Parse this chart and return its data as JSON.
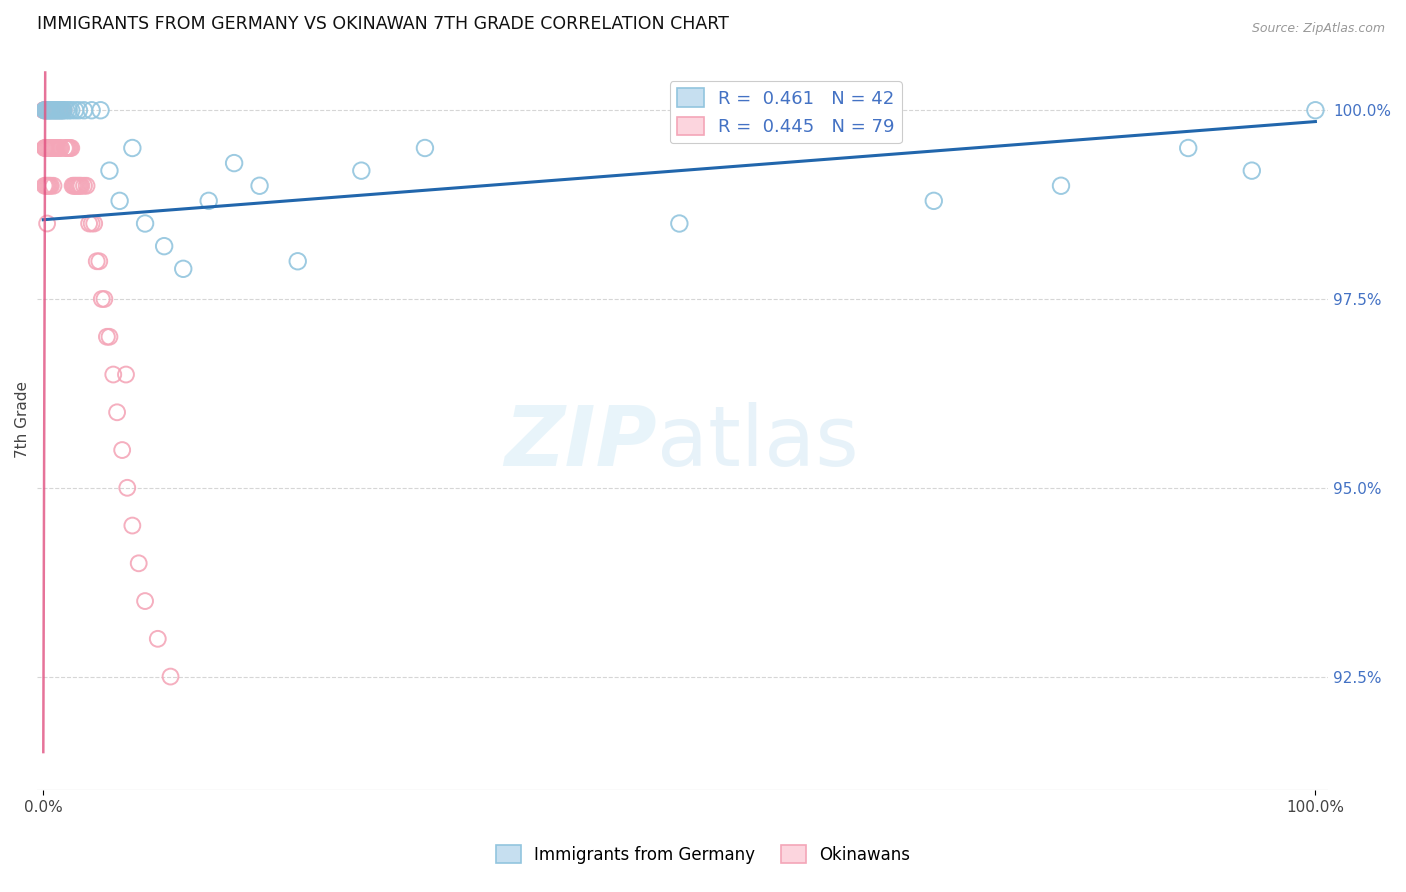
{
  "title": "IMMIGRANTS FROM GERMANY VS OKINAWAN 7TH GRADE CORRELATION CHART",
  "source": "Source: ZipAtlas.com",
  "ylabel": "7th Grade",
  "legend_blue_label": "Immigrants from Germany",
  "legend_pink_label": "Okinawans",
  "legend_R_blue": "R =  0.461",
  "legend_N_blue": "N = 42",
  "legend_R_pink": "R =  0.445",
  "legend_N_pink": "N = 79",
  "blue_color": "#92c5de",
  "pink_color": "#f4a6b8",
  "trendline_color": "#2166ac",
  "background_color": "#ffffff",
  "grid_color": "#cccccc",
  "ytick_color": "#4472c4",
  "right_yticks": [
    92.5,
    95.0,
    97.5,
    100.0
  ],
  "xlim": [
    0.0,
    1.0
  ],
  "ylim": [
    91.0,
    100.8
  ],
  "blue_x": [
    0.001,
    0.002,
    0.003,
    0.004,
    0.005,
    0.006,
    0.007,
    0.008,
    0.009,
    0.01,
    0.011,
    0.012,
    0.013,
    0.014,
    0.015,
    0.016,
    0.018,
    0.02,
    0.022,
    0.025,
    0.028,
    0.032,
    0.038,
    0.045,
    0.052,
    0.06,
    0.07,
    0.08,
    0.095,
    0.11,
    0.13,
    0.15,
    0.17,
    0.2,
    0.25,
    0.3,
    0.5,
    0.7,
    0.8,
    0.9,
    0.95,
    1.0
  ],
  "blue_y": [
    100.0,
    100.0,
    100.0,
    100.0,
    100.0,
    100.0,
    100.0,
    100.0,
    100.0,
    100.0,
    100.0,
    100.0,
    100.0,
    100.0,
    100.0,
    100.0,
    100.0,
    100.0,
    100.0,
    100.0,
    100.0,
    100.0,
    100.0,
    100.0,
    99.2,
    98.8,
    99.5,
    98.5,
    98.2,
    97.9,
    98.8,
    99.3,
    99.0,
    98.0,
    99.2,
    99.5,
    98.5,
    98.8,
    99.0,
    99.5,
    99.2,
    100.0
  ],
  "pink_x": [
    0.0003,
    0.0005,
    0.0007,
    0.001,
    0.001,
    0.001,
    0.0015,
    0.0015,
    0.002,
    0.002,
    0.002,
    0.0025,
    0.003,
    0.003,
    0.003,
    0.003,
    0.004,
    0.004,
    0.004,
    0.005,
    0.005,
    0.005,
    0.006,
    0.006,
    0.006,
    0.007,
    0.007,
    0.008,
    0.008,
    0.008,
    0.009,
    0.009,
    0.01,
    0.01,
    0.011,
    0.011,
    0.012,
    0.012,
    0.013,
    0.013,
    0.014,
    0.014,
    0.015,
    0.016,
    0.017,
    0.018,
    0.019,
    0.02,
    0.021,
    0.022,
    0.023,
    0.024,
    0.025,
    0.026,
    0.027,
    0.028,
    0.029,
    0.03,
    0.032,
    0.034,
    0.036,
    0.038,
    0.04,
    0.042,
    0.044,
    0.046,
    0.048,
    0.05,
    0.052,
    0.055,
    0.058,
    0.062,
    0.066,
    0.07,
    0.075,
    0.08,
    0.09,
    0.1,
    0.065
  ],
  "pink_y": [
    100.0,
    100.0,
    100.0,
    100.0,
    99.5,
    99.0,
    100.0,
    99.5,
    100.0,
    99.5,
    99.0,
    100.0,
    100.0,
    99.5,
    99.0,
    98.5,
    100.0,
    99.5,
    99.0,
    100.0,
    99.5,
    99.0,
    100.0,
    99.5,
    99.0,
    100.0,
    99.5,
    100.0,
    99.5,
    99.0,
    100.0,
    99.5,
    100.0,
    99.5,
    100.0,
    99.5,
    100.0,
    99.5,
    100.0,
    99.5,
    100.0,
    99.5,
    100.0,
    100.0,
    99.5,
    99.5,
    99.5,
    99.5,
    99.5,
    99.5,
    99.0,
    99.0,
    99.0,
    99.0,
    99.0,
    99.0,
    99.0,
    99.0,
    99.0,
    99.0,
    98.5,
    98.5,
    98.5,
    98.0,
    98.0,
    97.5,
    97.5,
    97.0,
    97.0,
    96.5,
    96.0,
    95.5,
    95.0,
    94.5,
    94.0,
    93.5,
    93.0,
    92.5,
    96.5
  ],
  "trendline_x0": 0.0,
  "trendline_y0": 98.55,
  "trendline_x1": 1.0,
  "trendline_y1": 99.85,
  "pink_trendline_x0": 0.0,
  "pink_trendline_y0": 91.5,
  "pink_trendline_x1": 0.0015,
  "pink_trendline_y1": 100.5
}
